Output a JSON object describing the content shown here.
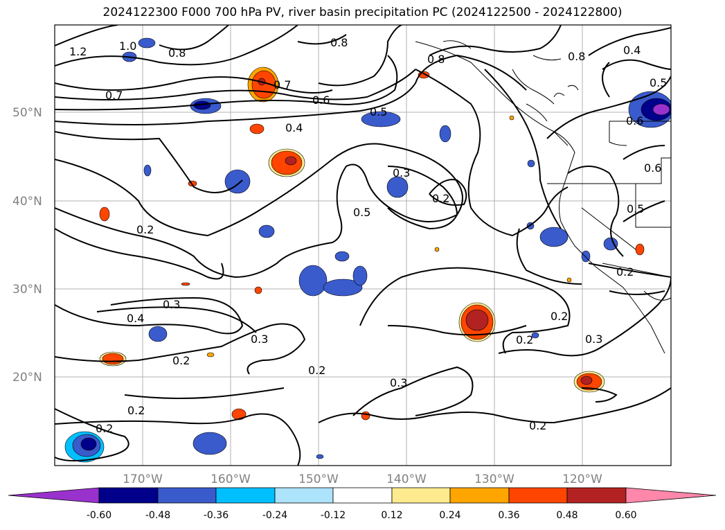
{
  "title": "2024122300 F000 700 hPa PV, river basin precipitation PC (2024122500 - 2024122800)",
  "lat_labels": [
    "50°N",
    "40°N",
    "30°N",
    "20°N"
  ],
  "lon_labels": [
    "170°W",
    "160°W",
    "150°W",
    "140°W",
    "130°W",
    "120°W"
  ],
  "colorbar": {
    "colors": [
      "#9932cc",
      "#00008b",
      "#3a5bcc",
      "#00bfff",
      "#ade3fb",
      "#ffffff",
      "#ffeb8f",
      "#ffa500",
      "#ff4500",
      "#b22222",
      "#ff88aa"
    ],
    "tick_labels": [
      "-0.60",
      "-0.48",
      "-0.36",
      "-0.24",
      "-0.12",
      "0.12",
      "0.24",
      "0.36",
      "0.48",
      "0.60"
    ]
  },
  "contour_labels": [
    "1.2",
    "1.0",
    "0.8",
    "0.7",
    "0.7",
    "0.6",
    "0.5",
    "0.4",
    "0.8",
    "0.8",
    "0.8",
    "0.4",
    "0.5",
    "0.6",
    "0.6",
    "0.5",
    "0.3",
    "0.2",
    "0.5",
    "0.2",
    "0.3",
    "0.4",
    "0.2",
    "0.3",
    "0.2",
    "0.2",
    "0.3",
    "0.2",
    "0.2",
    "0.2",
    "0.3",
    "0.2",
    "0.2"
  ]
}
